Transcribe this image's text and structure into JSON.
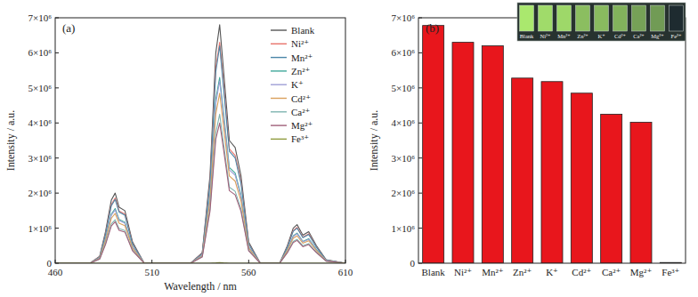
{
  "chart_data": [
    {
      "type": "line",
      "title": "(a)",
      "x_label": "Wavelength / nm",
      "y_label": "Intensity / a.u.",
      "x": [
        460,
        478,
        483,
        486,
        489,
        491,
        493,
        496,
        500,
        506,
        530,
        536,
        540,
        543,
        545,
        547,
        550,
        553,
        556,
        560,
        566,
        576,
        580,
        583,
        585,
        588,
        591,
        595,
        600,
        610
      ],
      "series": [
        {
          "name": "Blank",
          "color": "#555555",
          "values": [
            0,
            0,
            200000.0,
            900000.0,
            1800000.0,
            2000000.0,
            1600000.0,
            1500000.0,
            600000.0,
            0,
            0,
            300000.0,
            2500000.0,
            6000000.0,
            6800000.0,
            5500000.0,
            3500000.0,
            3300000.0,
            2500000.0,
            600000.0,
            0,
            0,
            500000.0,
            1000000.0,
            1100000.0,
            800000.0,
            900000.0,
            500000.0,
            100000.0,
            0
          ]
        },
        {
          "name": "Ni²⁺",
          "color": "#e8736b",
          "values": [
            0,
            0,
            190000.0,
            840000.0,
            1670000.0,
            1860000.0,
            1490000.0,
            1400000.0,
            560000.0,
            0,
            0,
            280000.0,
            2330000.0,
            5580000.0,
            6300000.0,
            5120000.0,
            3260000.0,
            3070000.0,
            2330000.0,
            560000.0,
            0,
            0,
            470000.0,
            930000.0,
            1020000.0,
            740000.0,
            840000.0,
            470000.0,
            90000.0,
            0
          ]
        },
        {
          "name": "Mn²⁺",
          "color": "#4a86a8",
          "values": [
            0,
            0,
            180000.0,
            820000.0,
            1640000.0,
            1820000.0,
            1460000.0,
            1370000.0,
            550000.0,
            0,
            0,
            270000.0,
            2280000.0,
            5460000.0,
            6200000.0,
            5000000.0,
            3190000.0,
            3000000.0,
            2280000.0,
            550000.0,
            0,
            0,
            460000.0,
            910000.0,
            1000000.0,
            730000.0,
            820000.0,
            460000.0,
            90000.0,
            0
          ]
        },
        {
          "name": "Zn²⁺",
          "color": "#3fa89a",
          "values": [
            0,
            0,
            160000.0,
            700000.0,
            1400000.0,
            1560000.0,
            1250000.0,
            1170000.0,
            470000.0,
            0,
            0,
            230000.0,
            1950000.0,
            4680000.0,
            5300000.0,
            4290000.0,
            2730000.0,
            2570000.0,
            1950000.0,
            470000.0,
            0,
            0,
            390000.0,
            780000.0,
            860000.0,
            620000.0,
            700000.0,
            390000.0,
            80000.0,
            0
          ]
        },
        {
          "name": "K⁺",
          "color": "#9f9fd6",
          "values": [
            0,
            0,
            150000.0,
            680000.0,
            1370000.0,
            1520000.0,
            1220000.0,
            1140000.0,
            460000.0,
            0,
            0,
            230000.0,
            1900000.0,
            4560000.0,
            5200000.0,
            4180000.0,
            2660000.0,
            2510000.0,
            1900000.0,
            460000.0,
            0,
            0,
            380000.0,
            760000.0,
            840000.0,
            610000.0,
            680000.0,
            380000.0,
            80000.0,
            0
          ]
        },
        {
          "name": "Cd²⁺",
          "color": "#d9a05b",
          "values": [
            0,
            0,
            140000.0,
            640000.0,
            1280000.0,
            1420000.0,
            1140000.0,
            1070000.0,
            430000.0,
            0,
            0,
            210000.0,
            1780000.0,
            4260000.0,
            4850000.0,
            3910000.0,
            2490000.0,
            2340000.0,
            1780000.0,
            430000.0,
            0,
            0,
            360000.0,
            710000.0,
            780000.0,
            570000.0,
            640000.0,
            360000.0,
            70000.0,
            0
          ]
        },
        {
          "name": "Ca²⁺",
          "color": "#7fb5b0",
          "values": [
            0,
            0,
            120000.0,
            560000.0,
            1120000.0,
            1240000.0,
            990000.0,
            930000.0,
            370000.0,
            0,
            0,
            190000.0,
            1550000.0,
            3720000.0,
            4250000.0,
            3410000.0,
            2170000.0,
            2050000.0,
            1550000.0,
            370000.0,
            0,
            0,
            310000.0,
            620000.0,
            680000.0,
            500000.0,
            560000.0,
            310000.0,
            60000.0,
            0
          ]
        },
        {
          "name": "Mg²⁺",
          "color": "#a0607a",
          "values": [
            0,
            0,
            120000.0,
            530000.0,
            1060000.0,
            1180000.0,
            940000.0,
            890000.0,
            350000.0,
            0,
            0,
            180000.0,
            1480000.0,
            3540000.0,
            4000000.0,
            3250000.0,
            2070000.0,
            1950000.0,
            1480000.0,
            350000.0,
            0,
            0,
            300000.0,
            590000.0,
            650000.0,
            470000.0,
            530000.0,
            300000.0,
            60000.0,
            0
          ]
        },
        {
          "name": "Fe³⁺",
          "color": "#8e9a3c",
          "values": [
            0,
            0,
            0,
            0,
            0,
            0,
            0,
            0,
            0,
            0,
            0,
            0,
            0,
            10000.0,
            20000.0,
            10000.0,
            0,
            0,
            0,
            0,
            0,
            0,
            0,
            0,
            0,
            0,
            0,
            0,
            0,
            0
          ]
        }
      ],
      "xlim": [
        460,
        610
      ],
      "xticks": [
        460,
        510,
        560,
        610
      ],
      "ylim": [
        0,
        7000000.0
      ],
      "yticks": [
        0,
        {
          "value": 1000000.0,
          "label": "1×10⁶"
        },
        {
          "value": 2000000.0,
          "label": "2×10⁶"
        },
        {
          "value": 3000000.0,
          "label": "3×10⁶"
        },
        {
          "value": 4000000.0,
          "label": "4×10⁶"
        },
        {
          "value": 5000000.0,
          "label": "5×10⁶"
        },
        {
          "value": 6000000.0,
          "label": "6×10⁶"
        },
        {
          "value": 7000000.0,
          "label": "7×10⁶"
        }
      ],
      "legend": "upper right",
      "grid": false
    },
    {
      "type": "bar",
      "title": "(b)",
      "y_label": "Intensity / a.u.",
      "categories": [
        "Blank",
        "Ni²⁺",
        "Mn²⁺",
        "Zn²⁺",
        "K⁺",
        "Cd²⁺",
        "Ca²⁺",
        "Mg²⁺",
        "Fe³⁺"
      ],
      "values": [
        6780000.0,
        6300000.0,
        6200000.0,
        5280000.0,
        5180000.0,
        4850000.0,
        4250000.0,
        4020000.0,
        20000.0
      ],
      "color": "#e8161c",
      "ylim": [
        0,
        7000000.0
      ],
      "yticks": [
        0,
        {
          "value": 1000000.0,
          "label": "1×10⁶"
        },
        {
          "value": 2000000.0,
          "label": "2×10⁶"
        },
        {
          "value": 3000000.0,
          "label": "3×10⁶"
        },
        {
          "value": 4000000.0,
          "label": "4×10⁶"
        },
        {
          "value": 5000000.0,
          "label": "5×10⁶"
        },
        {
          "value": 6000000.0,
          "label": "6×10⁶"
        },
        {
          "value": 7000000.0,
          "label": "7×10⁶"
        }
      ],
      "grid": false
    }
  ]
}
